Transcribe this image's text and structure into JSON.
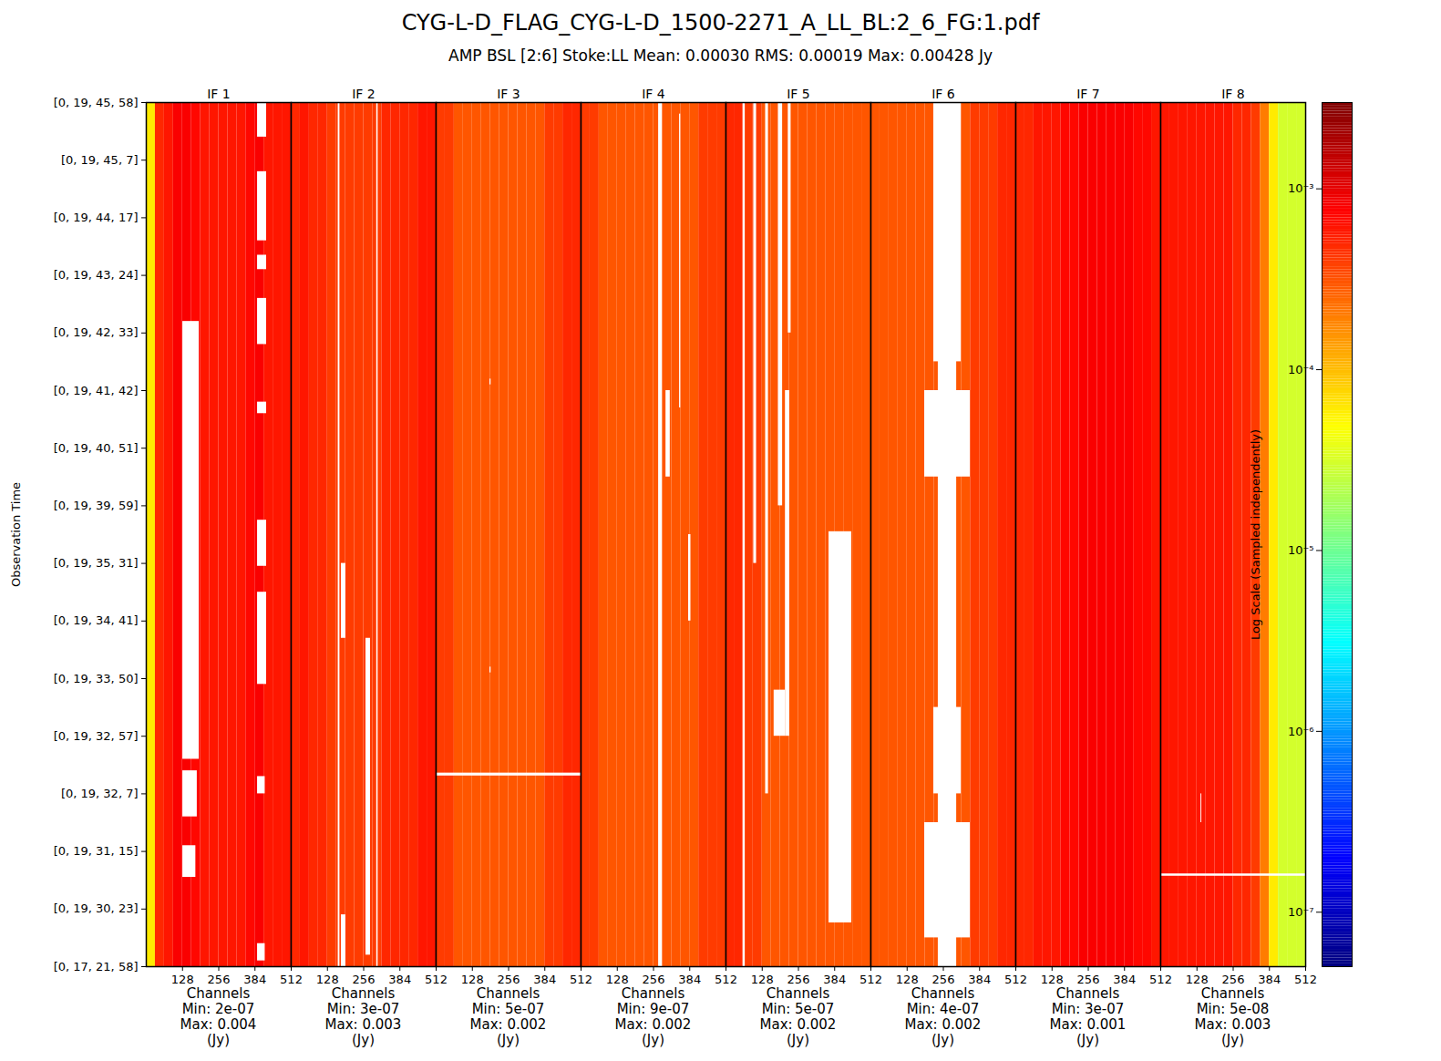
{
  "chart_data": {
    "type": "heatmap",
    "title": "CYG-L-D_FLAG_CYG-L-D_1500-2271_A_LL_BL:2_6_FG:1.pdf",
    "subtitle": "AMP BSL [2:6] Stoke:LL Mean: 0.00030 RMS: 0.00019 Max: 0.00428 Jy",
    "y_label": "Observation Time",
    "ylim": [
      0,
      15
    ],
    "yticks": [
      {
        "value": 0,
        "label": "[0, 17, 21, 58]"
      },
      {
        "value": 1,
        "label": "[0, 19, 30, 23]"
      },
      {
        "value": 2,
        "label": "[0, 19, 31, 15]"
      },
      {
        "value": 3,
        "label": "[0, 19, 32, 7]"
      },
      {
        "value": 4,
        "label": "[0, 19, 32, 57]"
      },
      {
        "value": 5,
        "label": "[0, 19, 33, 50]"
      },
      {
        "value": 6,
        "label": "[0, 19, 34, 41]"
      },
      {
        "value": 7,
        "label": "[0, 19, 35, 31]"
      },
      {
        "value": 8,
        "label": "[0, 19, 39, 59]"
      },
      {
        "value": 9,
        "label": "[0, 19, 40, 51]"
      },
      {
        "value": 10,
        "label": "[0, 19, 41, 42]"
      },
      {
        "value": 11,
        "label": "[0, 19, 42, 33]"
      },
      {
        "value": 12,
        "label": "[0, 19, 43, 24]"
      },
      {
        "value": 13,
        "label": "[0, 19, 44, 17]"
      },
      {
        "value": 14,
        "label": "[0, 19, 45, 7]"
      },
      {
        "value": 15,
        "label": "[0, 19, 45, 58]"
      }
    ],
    "log": true,
    "channel_bins": [
      0,
      32,
      64,
      96,
      128,
      160,
      192,
      224,
      256,
      288,
      320,
      352,
      384,
      416,
      448,
      480,
      512
    ],
    "panels": [
      {
        "title": "IF 1",
        "x_label": "Channels",
        "xlim": [
          0,
          512
        ],
        "xticks": [
          128,
          256,
          384,
          512
        ],
        "min_label": "Min: 2e-07",
        "max_label": "Max: 0.004",
        "unit": "(Jy)",
        "values": [
          6e-05,
          0.0005,
          0.0006,
          0.0008,
          0.0008,
          0.0007,
          0.0006,
          0.0006,
          0.0006,
          0.0006,
          0.0006,
          0.0007,
          0.0008,
          0.0006,
          0.0006,
          0.0006
        ],
        "flagged": [
          [
            129,
            187,
            3.6,
            11.2
          ],
          [
            129,
            180,
            2.6,
            3.4
          ],
          [
            129,
            175,
            1.55,
            2.1
          ],
          [
            393,
            425,
            14.4,
            15
          ],
          [
            393,
            425,
            12.6,
            13.8
          ],
          [
            393,
            425,
            12.1,
            12.35
          ],
          [
            393,
            425,
            10.8,
            11.6
          ],
          [
            393,
            425,
            9.6,
            9.8
          ],
          [
            393,
            425,
            6.95,
            7.75
          ],
          [
            393,
            425,
            4.9,
            6.5
          ],
          [
            393,
            420,
            3.0,
            3.3
          ],
          [
            393,
            420,
            0.1,
            0.4
          ]
        ]
      },
      {
        "title": "IF 2",
        "x_label": "Channels",
        "xlim": [
          0,
          512
        ],
        "xticks": [
          128,
          256,
          384,
          512
        ],
        "min_label": "Min: 3e-07",
        "max_label": "Max: 0.003",
        "unit": "(Jy)",
        "values": [
          0.0005,
          0.0006,
          0.0005,
          0.0005,
          0.0004,
          0.0004,
          0.0004,
          0.0004,
          0.0004,
          0.0004,
          0.0005,
          0.0005,
          0.0005,
          0.0005,
          0.0006,
          0.0006
        ],
        "flagged": [
          [
            166,
            172,
            0,
            15
          ],
          [
            302,
            307,
            0,
            15
          ],
          [
            264,
            280,
            0.2,
            5.7
          ],
          [
            177,
            193,
            0,
            0.9
          ],
          [
            177,
            193,
            5.7,
            7
          ]
        ]
      },
      {
        "title": "IF 3",
        "x_label": "Channels",
        "xlim": [
          0,
          512
        ],
        "xticks": [
          128,
          256,
          384,
          512
        ],
        "min_label": "Min: 5e-07",
        "max_label": "Max: 0.002",
        "unit": "(Jy)",
        "values": [
          0.0004,
          0.0004,
          0.0003,
          0.0003,
          0.0003,
          0.0003,
          0.0003,
          0.0003,
          0.0003,
          0.0003,
          0.0003,
          0.0003,
          0.0004,
          0.0004,
          0.0005,
          0.0005
        ],
        "flagged": [
          [
            0,
            512,
            3.31,
            3.36
          ],
          [
            190,
            194,
            10.1,
            10.2
          ],
          [
            190,
            194,
            5.1,
            5.2
          ]
        ]
      },
      {
        "title": "IF 4",
        "x_label": "Channels",
        "xlim": [
          0,
          512
        ],
        "xticks": [
          128,
          256,
          384,
          512
        ],
        "min_label": "Min: 9e-07",
        "max_label": "Max: 0.002",
        "unit": "(Jy)",
        "values": [
          0.0004,
          0.0004,
          0.0003,
          0.0003,
          0.0003,
          0.0003,
          0.0003,
          0.0003,
          0.0003,
          0.0003,
          0.0003,
          0.0003,
          0.0003,
          0.0004,
          0.0004,
          0.0004
        ],
        "flagged": [
          [
            274,
            287,
            0,
            15
          ],
          [
            348,
            352,
            9.7,
            14.8
          ],
          [
            380,
            388,
            6,
            7.5
          ],
          [
            300,
            315,
            8.5,
            10
          ]
        ]
      },
      {
        "title": "IF 5",
        "x_label": "Channels",
        "xlim": [
          0,
          512
        ],
        "xticks": [
          128,
          256,
          384,
          512
        ],
        "min_label": "Min: 5e-07",
        "max_label": "Max: 0.002",
        "unit": "(Jy)",
        "values": [
          0.0005,
          0.0005,
          0.0004,
          0.0004,
          0.0003,
          0.0003,
          0.0003,
          0.0003,
          0.0003,
          0.0003,
          0.0003,
          0.0003,
          0.0003,
          0.0003,
          0.0003,
          0.0003
        ],
        "flagged": [
          [
            60,
            68,
            0,
            15
          ],
          [
            98,
            108,
            7,
            15
          ],
          [
            140,
            150,
            3,
            15
          ],
          [
            185,
            200,
            8,
            15
          ],
          [
            210,
            225,
            4,
            10
          ],
          [
            220,
            230,
            11,
            15
          ],
          [
            170,
            210,
            4,
            4.8
          ],
          [
            364,
            444,
            0.76,
            7.55
          ]
        ]
      },
      {
        "title": "IF 6",
        "x_label": "Channels",
        "xlim": [
          0,
          512
        ],
        "xticks": [
          128,
          256,
          384,
          512
        ],
        "min_label": "Min: 4e-07",
        "max_label": "Max: 0.002",
        "unit": "(Jy)",
        "values": [
          0.0003,
          0.0003,
          0.0003,
          0.0003,
          0.0003,
          0.0003,
          0.0003,
          0.0003,
          0.0003,
          0.0003,
          0.0003,
          0.0004,
          0.0004,
          0.0004,
          0.0005,
          0.0005
        ],
        "flagged": [
          [
            238,
            303,
            0,
            15
          ],
          [
            222,
            319,
            10.5,
            15
          ],
          [
            190,
            351,
            0.5,
            2.5
          ],
          [
            190,
            351,
            8.5,
            10
          ],
          [
            222,
            319,
            3,
            4.5
          ]
        ]
      },
      {
        "title": "IF 7",
        "x_label": "Channels",
        "xlim": [
          0,
          512
        ],
        "xticks": [
          128,
          256,
          384,
          512
        ],
        "min_label": "Min: 3e-07",
        "max_label": "Max: 0.001",
        "unit": "(Jy)",
        "values": [
          0.0005,
          0.0005,
          0.0006,
          0.0006,
          0.0006,
          0.0007,
          0.0007,
          0.0008,
          0.0008,
          0.0008,
          0.0008,
          0.0008,
          0.0008,
          0.0007,
          0.0007,
          0.0006
        ],
        "flagged": []
      },
      {
        "title": "IF 8",
        "x_label": "Channels",
        "xlim": [
          0,
          512
        ],
        "xticks": [
          128,
          256,
          384,
          512
        ],
        "min_label": "Min: 5e-08",
        "max_label": "Max: 0.003",
        "unit": "(Jy)",
        "values": [
          0.0006,
          0.0006,
          0.0006,
          0.0006,
          0.0006,
          0.0006,
          0.0006,
          0.0006,
          0.0005,
          0.0005,
          0.0004,
          0.0002,
          6e-05,
          3e-05,
          3e-05,
          3e-05
        ],
        "flagged": [
          [
            0,
            512,
            1.57,
            1.61
          ],
          [
            142,
            145,
            2.5,
            3
          ]
        ]
      }
    ],
    "colorbar": {
      "label": "Log Scale (Sampled independently)",
      "range": [
        5e-08,
        0.003
      ],
      "ticks": [
        {
          "value": 1e-07,
          "label": "10⁻⁷"
        },
        {
          "value": 1e-06,
          "label": "10⁻⁶"
        },
        {
          "value": 1e-05,
          "label": "10⁻⁵"
        },
        {
          "value": 0.0001,
          "label": "10⁻⁴"
        },
        {
          "value": 0.001,
          "label": "10⁻³"
        }
      ]
    }
  }
}
